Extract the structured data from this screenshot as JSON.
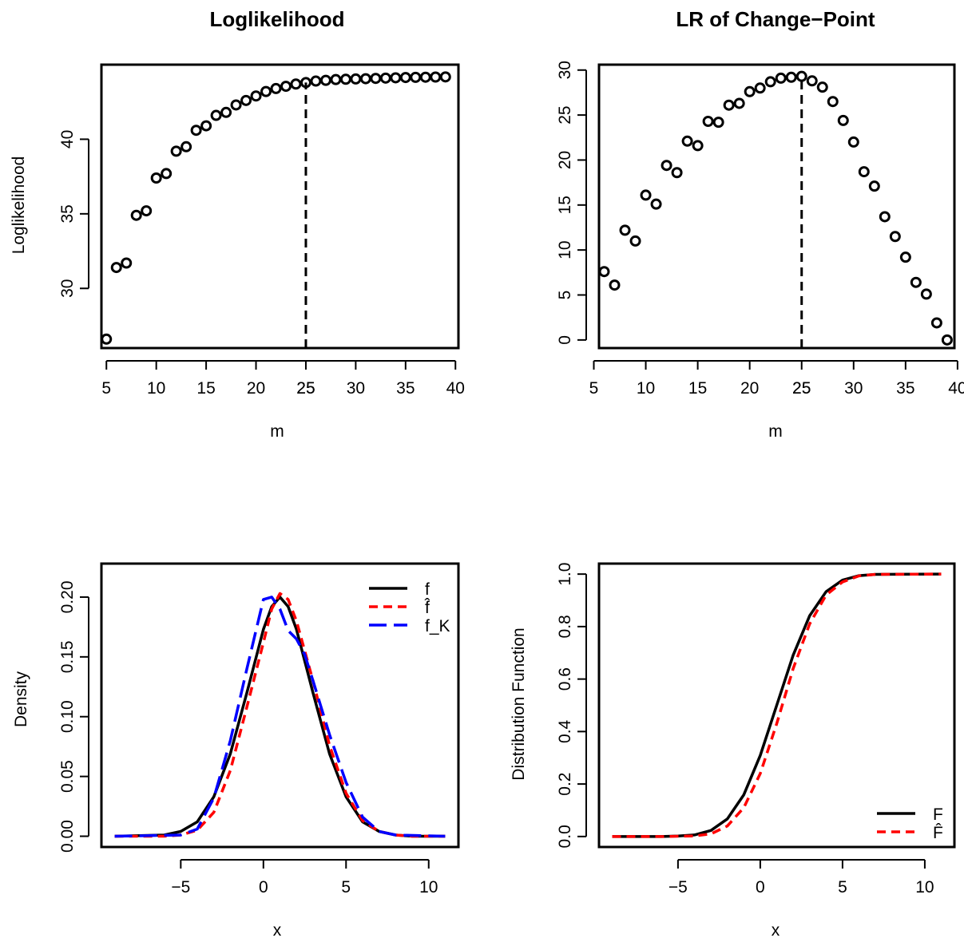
{
  "chart_data": [
    {
      "type": "scatter",
      "title": "Loglikelihood",
      "xlabel": "m",
      "ylabel": "Loglikelihood",
      "xlim": [
        4.5,
        40.3
      ],
      "ylim": [
        26.0,
        45.0
      ],
      "xticks": [
        5,
        10,
        15,
        20,
        25,
        30,
        35,
        40
      ],
      "xtick_labels": [
        "5",
        "10",
        "15",
        "20",
        "25",
        "30",
        "35",
        "40"
      ],
      "yticks": [
        30,
        35,
        40
      ],
      "ytick_labels": [
        "30",
        "35",
        "40"
      ],
      "marker": "open-circle",
      "series": [
        {
          "x": [
            5,
            6,
            7,
            8,
            9,
            10,
            11,
            12,
            13,
            14,
            15,
            16,
            17,
            18,
            19,
            20,
            21,
            22,
            23,
            24,
            25,
            26,
            27,
            28,
            29,
            30,
            31,
            32,
            33,
            34,
            35,
            36,
            37,
            38,
            39
          ],
          "values": [
            26.6,
            31.4,
            31.7,
            34.9,
            35.2,
            37.4,
            37.7,
            39.2,
            39.5,
            40.6,
            40.9,
            41.6,
            41.8,
            42.3,
            42.6,
            42.9,
            43.2,
            43.4,
            43.55,
            43.7,
            43.8,
            43.9,
            43.95,
            44.0,
            44.02,
            44.04,
            44.06,
            44.08,
            44.1,
            44.12,
            44.14,
            44.15,
            44.16,
            44.17,
            44.18
          ]
        }
      ],
      "vline": {
        "x": 25,
        "y_end": 43.8,
        "style": "dashed",
        "label": "25"
      },
      "grid": false
    },
    {
      "type": "scatter",
      "title": "LR of Change−Point",
      "xlabel": "m",
      "ylabel": "",
      "xlim": [
        5.5,
        39.7
      ],
      "ylim": [
        -0.9,
        30.6
      ],
      "xticks": [
        5,
        10,
        15,
        20,
        25,
        30,
        35,
        40
      ],
      "xtick_labels": [
        "5",
        "10",
        "15",
        "20",
        "25",
        "30",
        "35",
        "40"
      ],
      "yticks": [
        0,
        5,
        10,
        15,
        20,
        25,
        30
      ],
      "ytick_labels": [
        "0",
        "5",
        "10",
        "15",
        "20",
        "25",
        "30"
      ],
      "marker": "open-circle",
      "series": [
        {
          "x": [
            6,
            7,
            8,
            9,
            10,
            11,
            12,
            13,
            14,
            15,
            16,
            17,
            18,
            19,
            20,
            21,
            22,
            23,
            24,
            25,
            26,
            27,
            28,
            29,
            30,
            31,
            32,
            33,
            34,
            35,
            36,
            37,
            38,
            39
          ],
          "values": [
            7.6,
            6.1,
            12.2,
            11.0,
            16.1,
            15.1,
            19.4,
            18.6,
            22.1,
            21.6,
            24.3,
            24.2,
            26.1,
            26.3,
            27.6,
            28.0,
            28.7,
            29.1,
            29.2,
            29.3,
            28.8,
            28.1,
            26.5,
            24.4,
            22.0,
            18.7,
            17.1,
            13.7,
            11.5,
            9.2,
            6.4,
            5.1,
            1.9,
            0.0
          ]
        }
      ],
      "vline": {
        "x": 25,
        "y_end": 29.3,
        "style": "dashed",
        "label": "25"
      },
      "grid": false
    },
    {
      "type": "line",
      "title": "",
      "xlabel": "x",
      "ylabel": "Density",
      "xlim": [
        -9.8,
        11.8
      ],
      "ylim": [
        -0.009,
        0.228
      ],
      "xticks": [
        -5,
        0,
        5,
        10
      ],
      "xtick_labels": [
        "−5",
        "0",
        "5",
        "10"
      ],
      "yticks": [
        0,
        0.05,
        0.1,
        0.15,
        0.2
      ],
      "ytick_labels": [
        "0.00",
        "0.05",
        "0.10",
        "0.15",
        "0.20"
      ],
      "legend_position": "top-right",
      "series": [
        {
          "name": "f",
          "color": "#000000",
          "style": "solid",
          "x": [
            -9,
            -6,
            -5,
            -4,
            -3,
            -2,
            -1,
            0,
            0.5,
            1,
            1.5,
            2,
            3,
            4,
            5,
            6,
            7,
            8,
            9,
            11
          ],
          "values": [
            0.0,
            0.001,
            0.004,
            0.012,
            0.033,
            0.069,
            0.12,
            0.173,
            0.192,
            0.2,
            0.192,
            0.173,
            0.12,
            0.069,
            0.033,
            0.012,
            0.004,
            0.001,
            0.0,
            0.0
          ]
        },
        {
          "name": "f̂",
          "color": "#ff0000",
          "style": "dashed",
          "x": [
            -9,
            -6,
            -5,
            -4,
            -3,
            -2,
            -1,
            0,
            0.5,
            1,
            1.5,
            2,
            3,
            4,
            5,
            6,
            7,
            8,
            9,
            11
          ],
          "values": [
            0.0,
            0.0,
            0.001,
            0.005,
            0.02,
            0.055,
            0.108,
            0.162,
            0.19,
            0.203,
            0.198,
            0.18,
            0.13,
            0.076,
            0.036,
            0.013,
            0.004,
            0.001,
            0.0,
            0.0
          ]
        },
        {
          "name": "f_K",
          "color": "#0000ff",
          "style": "longdash",
          "x": [
            -9,
            -5,
            -4,
            -3,
            -2,
            -1,
            0,
            0.5,
            1,
            1.5,
            2,
            2.5,
            3,
            4,
            5,
            6,
            7,
            8,
            11
          ],
          "values": [
            0.0,
            0.001,
            0.006,
            0.032,
            0.08,
            0.14,
            0.198,
            0.2,
            0.19,
            0.172,
            0.165,
            0.152,
            0.13,
            0.085,
            0.045,
            0.016,
            0.004,
            0.001,
            0.0
          ]
        }
      ],
      "grid": false
    },
    {
      "type": "line",
      "title": "",
      "xlabel": "x",
      "ylabel": "Distribution Function",
      "xlim": [
        -9.8,
        11.8
      ],
      "ylim": [
        -0.04,
        1.04
      ],
      "xticks": [
        -5,
        0,
        5,
        10
      ],
      "xtick_labels": [
        "−5",
        "0",
        "5",
        "10"
      ],
      "yticks": [
        0,
        0.2,
        0.4,
        0.6,
        0.8,
        1.0
      ],
      "ytick_labels": [
        "0.0",
        "0.2",
        "0.4",
        "0.6",
        "0.8",
        "1.0"
      ],
      "legend_position": "bottom-right",
      "series": [
        {
          "name": "F",
          "color": "#000000",
          "style": "solid",
          "x": [
            -9,
            -6,
            -5,
            -4,
            -3,
            -2,
            -1,
            0,
            1,
            2,
            3,
            4,
            5,
            6,
            7,
            11
          ],
          "values": [
            0.0,
            0.0,
            0.002,
            0.006,
            0.023,
            0.067,
            0.159,
            0.309,
            0.5,
            0.691,
            0.841,
            0.933,
            0.977,
            0.994,
            0.999,
            1.0
          ]
        },
        {
          "name": "F̂",
          "color": "#ff0000",
          "style": "dashed",
          "x": [
            -9,
            -6,
            -5,
            -4,
            -3,
            -2,
            -1,
            0,
            1,
            2,
            3,
            4,
            5,
            6,
            7,
            11
          ],
          "values": [
            0.0,
            0.0,
            0.001,
            0.002,
            0.01,
            0.04,
            0.11,
            0.24,
            0.43,
            0.64,
            0.81,
            0.92,
            0.97,
            0.993,
            0.999,
            1.0
          ]
        }
      ],
      "grid": false
    }
  ]
}
